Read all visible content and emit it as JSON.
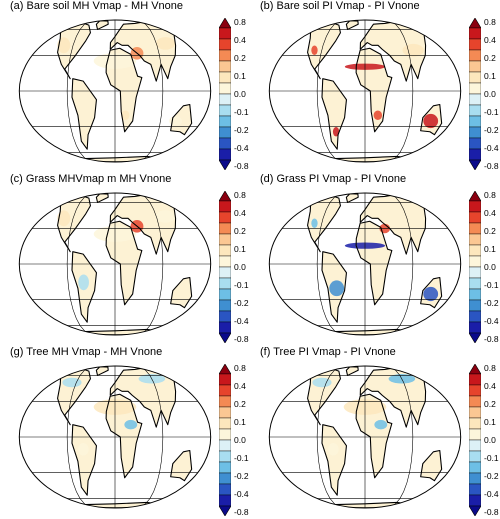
{
  "panels": [
    {
      "title": "(a) Bare soil MH Vmap - MH Vnone"
    },
    {
      "title": "(b) Bare soil PI Vmap - PI Vnone"
    },
    {
      "title": "(c) Grass MHVmap m MH Vnone"
    },
    {
      "title": "(d) Grass PI Vmap - PI Vnone"
    },
    {
      "title": "(g) Tree MH Vmap - MH Vnone"
    },
    {
      "title": "(f) Tree PI Vmap - PI Vnone"
    }
  ],
  "colorbar": {
    "labels": [
      "0.8",
      "0.4",
      "0.2",
      "0.1",
      "0.0",
      "-0.1",
      "-0.2",
      "-0.4",
      "-0.8"
    ],
    "colors": [
      "#8b0010",
      "#c8171c",
      "#e6442c",
      "#f48a54",
      "#fbc793",
      "#fde7bd",
      "#fdf6db",
      "#ddf1f6",
      "#a9def0",
      "#6dbfe5",
      "#3f8fd1",
      "#2a55c2",
      "#1a1ea8",
      "#0a0a8a"
    ]
  }
}
